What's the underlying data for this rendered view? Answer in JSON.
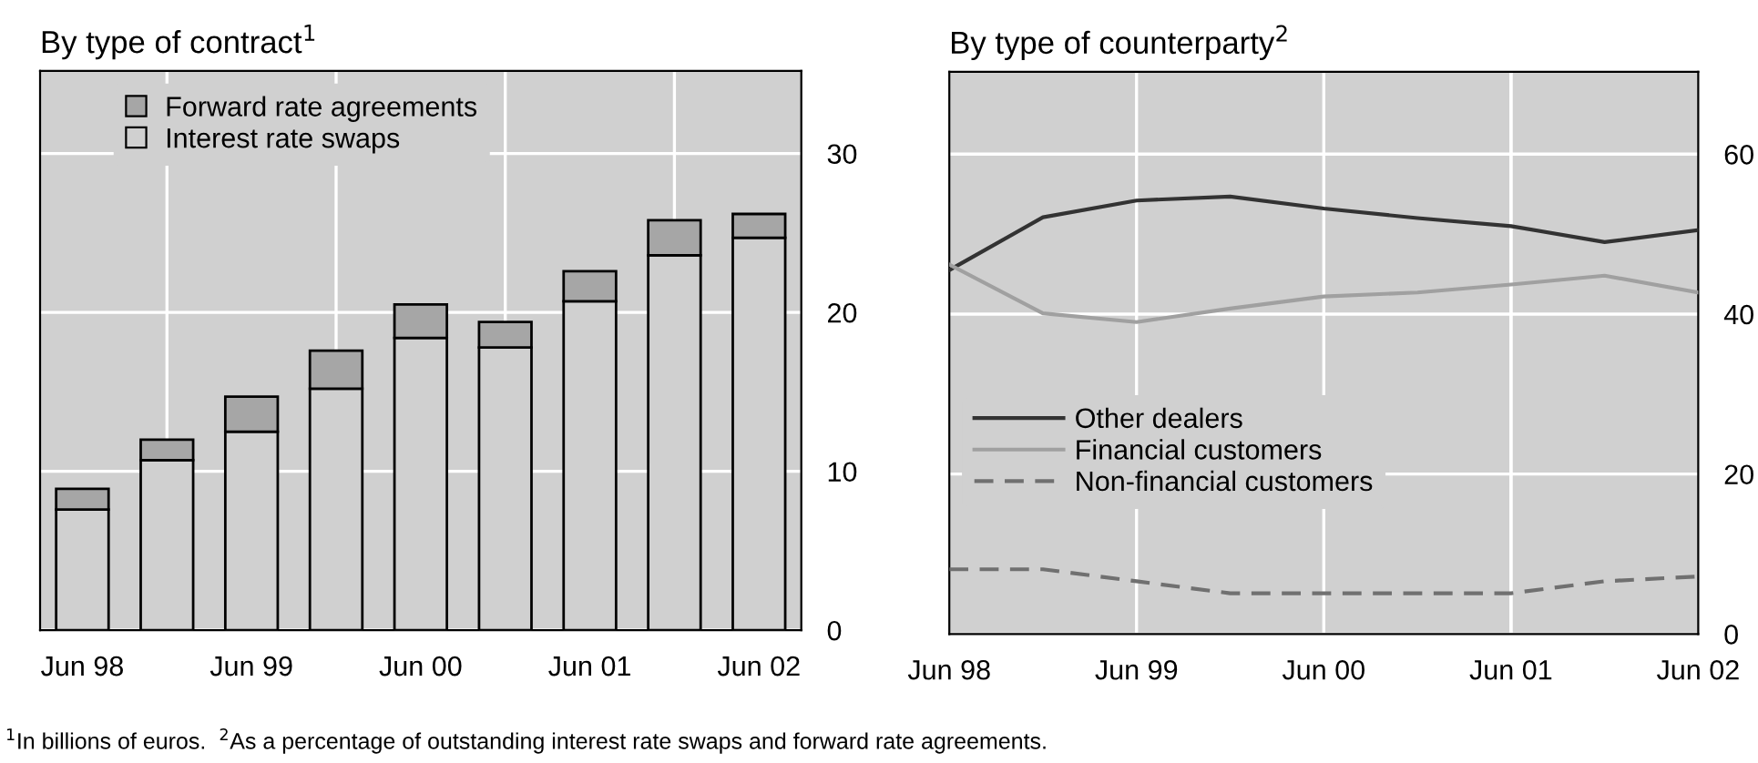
{
  "chart_data": [
    {
      "type": "bar",
      "title": "By type of contract$^{1}$",
      "stacked": true,
      "categories": [
        "Jun 98",
        null,
        "Jun 99",
        null,
        "Jun 00",
        null,
        "Jun 01",
        null,
        "Jun 02"
      ],
      "series": [
        {
          "name": "Interest rate swaps",
          "color": "#d0d0d0",
          "values": [
            7.6,
            10.7,
            12.5,
            15.2,
            18.4,
            17.8,
            20.7,
            23.6,
            24.7
          ]
        },
        {
          "name": "Forward rate agreements",
          "color": "#a6a6a6",
          "values": [
            1.3,
            1.3,
            2.2,
            2.4,
            2.1,
            1.6,
            1.9,
            2.2,
            1.5
          ]
        }
      ],
      "ylim": [
        0,
        35.2
      ],
      "yticks": [
        0,
        10,
        20,
        30
      ],
      "grid": true,
      "legend": "top left",
      "annotations": [
        "$^{1}$In billions of euros.  $^{2}$As a percentage of outstanding interest rate swaps and forward rate agreements."
      ]
    },
    {
      "type": "line",
      "title": "By type of counterparty$^{2}$",
      "categories": [
        "Jun 98",
        null,
        "Jun 99",
        null,
        "Jun 00",
        null,
        "Jun 01",
        null,
        "Jun 02"
      ],
      "series": [
        {
          "name": "Other dealers",
          "color": "#333333",
          "line_style": "solid",
          "values": [
            45.5,
            52.1,
            54.2,
            54.7,
            53.2,
            52.0,
            51.0,
            49.0,
            50.5
          ]
        },
        {
          "name": "Financial customers",
          "color": "#a0a0a0",
          "line_style": "solid",
          "values": [
            46.2,
            40.1,
            39.0,
            40.7,
            42.2,
            42.7,
            43.7,
            44.8,
            42.7
          ]
        },
        {
          "name": "Non-financial customers",
          "color": "#707070",
          "line_style": "dashed",
          "values": [
            8.1,
            8.1,
            6.6,
            5.1,
            5.1,
            5.1,
            5.1,
            6.6,
            7.2
          ]
        }
      ],
      "ylim": [
        0,
        70.3
      ],
      "yticks": [
        0,
        20,
        40,
        60
      ],
      "grid": true,
      "legend": "bottom left"
    }
  ]
}
